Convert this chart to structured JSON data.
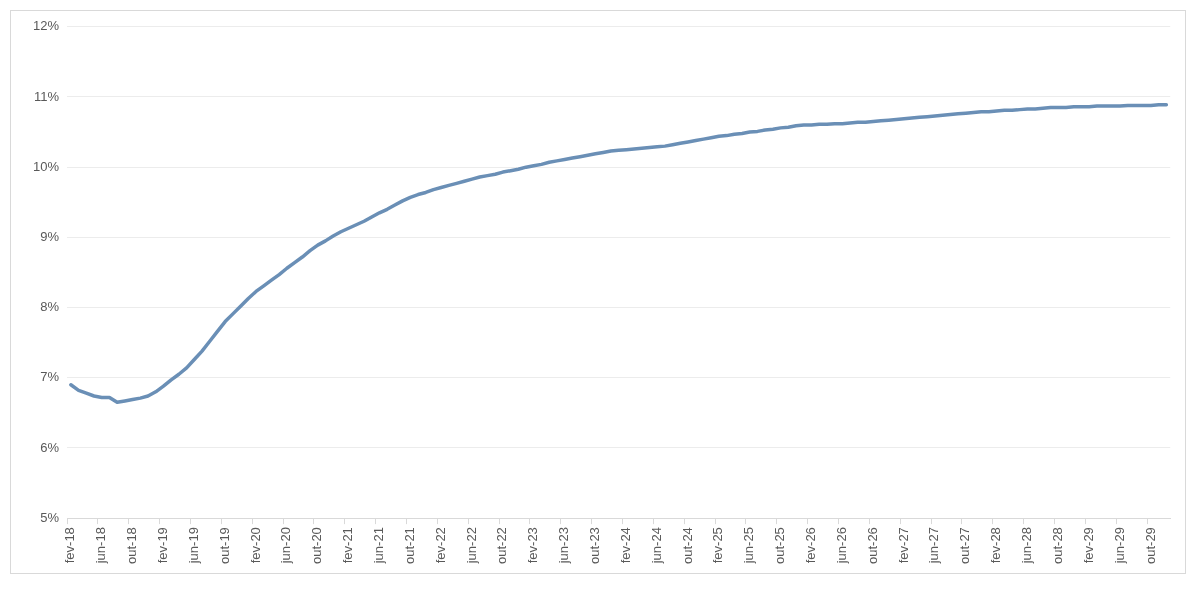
{
  "chart_data": {
    "type": "line",
    "categories": [
      "fev-18",
      null,
      null,
      null,
      "jun-18",
      null,
      null,
      null,
      "out-18",
      null,
      null,
      null,
      "fev-19",
      null,
      null,
      null,
      "jun-19",
      null,
      null,
      null,
      "out-19",
      null,
      null,
      null,
      "fev-20",
      null,
      null,
      null,
      "jun-20",
      null,
      null,
      null,
      "out-20",
      null,
      null,
      null,
      "fev-21",
      null,
      null,
      null,
      "jun-21",
      null,
      null,
      null,
      "out-21",
      null,
      null,
      null,
      "fev-22",
      null,
      null,
      null,
      "jun-22",
      null,
      null,
      null,
      "out-22",
      null,
      null,
      null,
      "fev-23",
      null,
      null,
      null,
      "jun-23",
      null,
      null,
      null,
      "out-23",
      null,
      null,
      null,
      "fev-24",
      null,
      null,
      null,
      "jun-24",
      null,
      null,
      null,
      "out-24",
      null,
      null,
      null,
      "fev-25",
      null,
      null,
      null,
      "jun-25",
      null,
      null,
      null,
      "out-25",
      null,
      null,
      null,
      "fev-26",
      null,
      null,
      null,
      "jun-26",
      null,
      null,
      null,
      "out-26",
      null,
      null,
      null,
      "fev-27",
      null,
      null,
      null,
      "jun-27",
      null,
      null,
      null,
      "out-27",
      null,
      null,
      null,
      "fev-28",
      null,
      null,
      null,
      "jun-28",
      null,
      null,
      null,
      "out-28",
      null,
      null,
      null,
      "fev-29",
      null,
      null,
      null,
      "jun-29",
      null,
      null,
      null,
      "out-29",
      null,
      null
    ],
    "series": [
      {
        "color": "#6a8fb6",
        "values": [
          6.9,
          6.82,
          6.78,
          6.74,
          6.72,
          6.72,
          6.65,
          6.67,
          6.69,
          6.71,
          6.74,
          6.8,
          6.88,
          6.97,
          7.05,
          7.14,
          7.26,
          7.38,
          7.52,
          7.66,
          7.8,
          7.91,
          8.02,
          8.13,
          8.23,
          8.31,
          8.39,
          8.47,
          8.56,
          8.64,
          8.72,
          8.81,
          8.89,
          8.95,
          9.02,
          9.08,
          9.13,
          9.18,
          9.23,
          9.29,
          9.35,
          9.4,
          9.46,
          9.52,
          9.57,
          9.61,
          9.64,
          9.68,
          9.71,
          9.74,
          9.77,
          9.8,
          9.83,
          9.86,
          9.88,
          9.9,
          9.93,
          9.95,
          9.97,
          10.0,
          10.02,
          10.04,
          10.07,
          10.09,
          10.11,
          10.13,
          10.15,
          10.17,
          10.19,
          10.21,
          10.23,
          10.24,
          10.25,
          10.26,
          10.27,
          10.28,
          10.29,
          10.3,
          10.32,
          10.34,
          10.36,
          10.38,
          10.4,
          10.42,
          10.44,
          10.45,
          10.47,
          10.48,
          10.5,
          10.51,
          10.53,
          10.54,
          10.56,
          10.57,
          10.59,
          10.6,
          10.6,
          10.61,
          10.61,
          10.62,
          10.62,
          10.63,
          10.64,
          10.64,
          10.65,
          10.66,
          10.67,
          10.68,
          10.69,
          10.7,
          10.71,
          10.72,
          10.73,
          10.74,
          10.75,
          10.76,
          10.77,
          10.78,
          10.79,
          10.79,
          10.8,
          10.81,
          10.81,
          10.82,
          10.83,
          10.83,
          10.84,
          10.85,
          10.85,
          10.85,
          10.86,
          10.86,
          10.86,
          10.87,
          10.87,
          10.87,
          10.87,
          10.88,
          10.88,
          10.88,
          10.88,
          10.89,
          10.89
        ]
      }
    ],
    "ylim": [
      5,
      12
    ],
    "yticks": [
      {
        "value": 5,
        "label": "5%"
      },
      {
        "value": 6,
        "label": "6%"
      },
      {
        "value": 7,
        "label": "7%"
      },
      {
        "value": 8,
        "label": "8%"
      },
      {
        "value": 9,
        "label": "9%"
      },
      {
        "value": 10,
        "label": "10%"
      },
      {
        "value": 11,
        "label": "11%"
      },
      {
        "value": 12,
        "label": "12%"
      }
    ],
    "grid": "y",
    "legend": false,
    "marker": "none",
    "line_style": "solid"
  }
}
